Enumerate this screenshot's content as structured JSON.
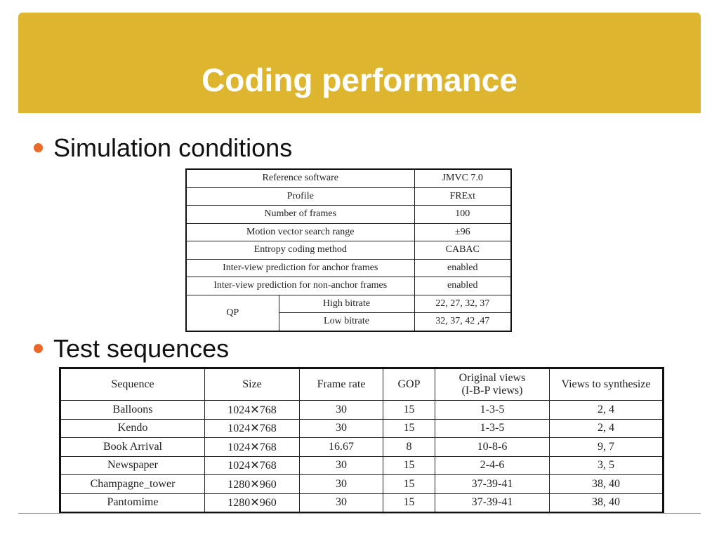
{
  "title": "Coding performance",
  "bullets": [
    "Simulation conditions",
    "Test sequences"
  ],
  "colors": {
    "header": "#DDB52F",
    "bullet": "#E8692A"
  },
  "simulation_table": {
    "rows": [
      [
        "Reference software",
        "JMVC 7.0"
      ],
      [
        "Profile",
        "FRExt"
      ],
      [
        "Number of frames",
        "100"
      ],
      [
        "Motion vector search range",
        "±96"
      ],
      [
        "Entropy coding method",
        "CABAC"
      ],
      [
        "Inter-view prediction for anchor frames",
        "enabled"
      ],
      [
        "Inter-view prediction for non-anchor frames",
        "enabled"
      ]
    ],
    "qp": {
      "label": "QP",
      "high_label": "High bitrate",
      "high_value": "22, 27, 32, 37",
      "low_label": "Low bitrate",
      "low_value": "32, 37, 42 ,47"
    }
  },
  "sequence_table": {
    "headers": [
      "Sequence",
      "Size",
      "Frame rate",
      "GOP",
      "Original views",
      "(I-B-P views)",
      "Views to synthesize"
    ],
    "rows": [
      [
        "Balloons",
        "1024✕768",
        "30",
        "15",
        "1-3-5",
        "2, 4"
      ],
      [
        "Kendo",
        "1024✕768",
        "30",
        "15",
        "1-3-5",
        "2, 4"
      ],
      [
        "Book Arrival",
        "1024✕768",
        "16.67",
        "8",
        "10-8-6",
        "9, 7"
      ],
      [
        "Newspaper",
        "1024✕768",
        "30",
        "15",
        "2-4-6",
        "3, 5"
      ],
      [
        "Champagne_tower",
        "1280✕960",
        "30",
        "15",
        "37-39-41",
        "38, 40"
      ],
      [
        "Pantomime",
        "1280✕960",
        "30",
        "15",
        "37-39-41",
        "38, 40"
      ]
    ]
  }
}
